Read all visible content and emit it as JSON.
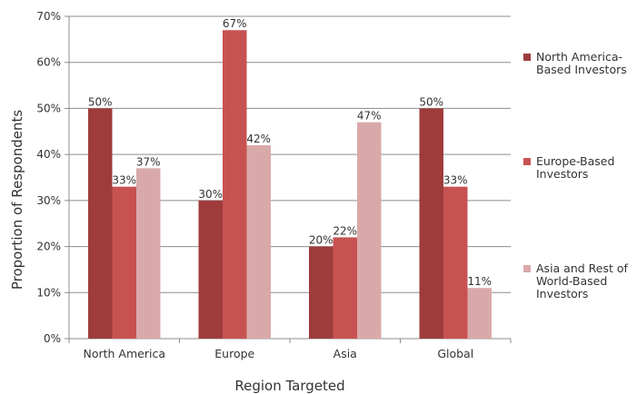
{
  "chart_data": {
    "type": "bar",
    "xlabel": "Region Targeted",
    "ylabel": "Proportion of Respondents",
    "ylim": [
      0,
      70
    ],
    "yticks": [
      0,
      10,
      20,
      30,
      40,
      50,
      60,
      70
    ],
    "ytick_labels": [
      "0%",
      "10%",
      "20%",
      "30%",
      "40%",
      "50%",
      "60%",
      "70%"
    ],
    "grid": true,
    "legend_position": "right",
    "categories": [
      "North America",
      "Europe",
      "Asia",
      "Global"
    ],
    "series": [
      {
        "name": "North America-Based Investors",
        "legend_lines": [
          "North America-",
          "Based Investors"
        ],
        "color": "#9e3c3c",
        "values": [
          50,
          30,
          20,
          50
        ],
        "labels": [
          "50%",
          "30%",
          "20%",
          "50%"
        ]
      },
      {
        "name": "Europe-Based Investors",
        "legend_lines": [
          "Europe-Based",
          "Investors"
        ],
        "color": "#c85252",
        "values": [
          33,
          67,
          22,
          33
        ],
        "labels": [
          "33%",
          "67%",
          "22%",
          "33%"
        ]
      },
      {
        "name": "Asia and Rest of World-Based Investors",
        "legend_lines": [
          "Asia and Rest of",
          "World-Based",
          "Investors"
        ],
        "color": "#d9a9a9",
        "values": [
          37,
          42,
          47,
          11
        ],
        "labels": [
          "37%",
          "42%",
          "47%",
          "11%"
        ]
      }
    ]
  }
}
